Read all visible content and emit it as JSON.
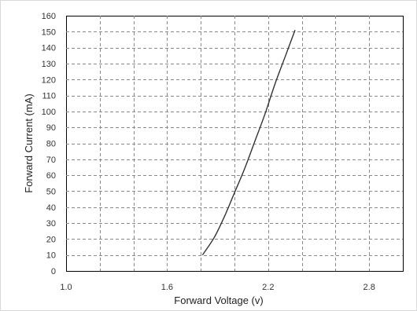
{
  "chart_data": {
    "type": "line",
    "xlabel": "Forward Voltage (v)",
    "ylabel": "Forward Current (mA)",
    "xlim": [
      1.0,
      3.0
    ],
    "ylim": [
      0,
      160
    ],
    "x_ticks": [
      1.0,
      1.6,
      2.2,
      2.8
    ],
    "x_tick_labels": [
      "1.0",
      "1.6",
      "2.2",
      "2.8"
    ],
    "x_grid_step": 0.2,
    "y_ticks": [
      0,
      10,
      20,
      30,
      40,
      50,
      60,
      70,
      80,
      90,
      100,
      110,
      120,
      130,
      140,
      150,
      160
    ],
    "y_tick_labels": [
      "0",
      "10",
      "20",
      "30",
      "40",
      "50",
      "60",
      "70",
      "80",
      "90",
      "100",
      "110",
      "120",
      "130",
      "140",
      "150",
      "160"
    ],
    "grid": true,
    "legend": "none",
    "series": [
      {
        "color": "#333333",
        "x": [
          1.81,
          1.88,
          1.94,
          2.0,
          2.06,
          2.12,
          2.18,
          2.24,
          2.3,
          2.36
        ],
        "y": [
          10,
          21,
          34,
          49,
          64,
          81,
          98,
          117,
          134,
          151
        ]
      }
    ]
  }
}
